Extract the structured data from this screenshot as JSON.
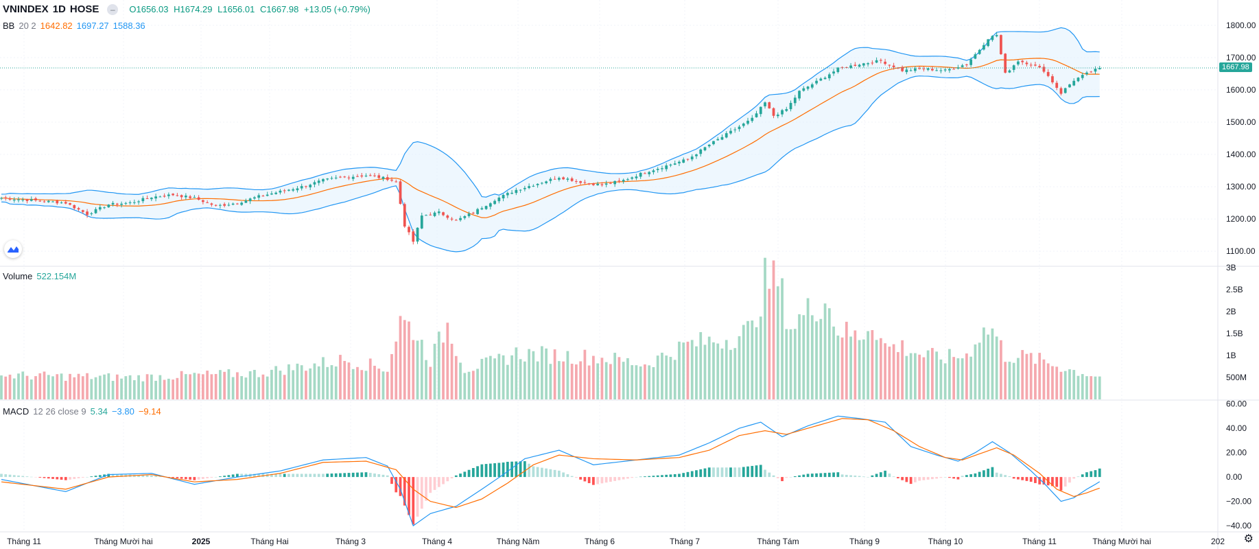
{
  "header": {
    "symbol": "VNINDEX",
    "interval": "1D",
    "exchange": "HOSE",
    "eye_icon": "minus-icon",
    "open": "O1656.03",
    "high": "H1674.29",
    "low": "L1656.01",
    "close": "C1667.98",
    "change": "+13.05 (+0.79%)"
  },
  "bb_legend": {
    "name": "BB",
    "params": "20 2",
    "basis": "1642.82",
    "upper": "1697.27",
    "lower": "1588.36"
  },
  "volume_legend": {
    "name": "Volume",
    "value": "522.154M"
  },
  "macd_legend": {
    "name": "MACD",
    "params": "12 26 close 9",
    "hist": "5.34",
    "macd": "−3.80",
    "signal": "−9.14"
  },
  "last_price_tag": "1667.98",
  "colors": {
    "up": "#26a69a",
    "down": "#ef5350",
    "bb_line": "#2196f3",
    "basis": "#ff6d00",
    "bb_fill": "#e3f2fd"
  },
  "chart_data": [
    {
      "type": "candlestick",
      "title": "VNINDEX 1D HOSE",
      "y_ticks": [
        "1100.00",
        "1200.00",
        "1300.00",
        "1400.00",
        "1500.00",
        "1600.00",
        "1700.00",
        "1800.00"
      ],
      "ylim": [
        1060,
        1840
      ],
      "x_ticks": [
        "Tháng 11",
        "Tháng Mười hai",
        "2025",
        "Tháng Hai",
        "Tháng 3",
        "Tháng 4",
        "Tháng Năm",
        "Tháng 6",
        "Tháng 7",
        "Tháng Tám",
        "Tháng 9",
        "Tháng 10",
        "Tháng 11",
        "Tháng Mười hai",
        "202"
      ],
      "x_tick_bold": "2025",
      "close_anchors": [
        [
          0,
          1265
        ],
        [
          10,
          1255
        ],
        [
          15,
          1250
        ],
        [
          20,
          1215
        ],
        [
          25,
          1245
        ],
        [
          30,
          1250
        ],
        [
          35,
          1268
        ],
        [
          40,
          1275
        ],
        [
          45,
          1265
        ],
        [
          50,
          1240
        ],
        [
          55,
          1250
        ],
        [
          60,
          1270
        ],
        [
          65,
          1285
        ],
        [
          70,
          1300
        ],
        [
          75,
          1320
        ],
        [
          80,
          1330
        ],
        [
          85,
          1335
        ],
        [
          90,
          1325
        ],
        [
          92,
          1315
        ],
        [
          94,
          1180
        ],
        [
          96,
          1130
        ],
        [
          98,
          1210
        ],
        [
          102,
          1220
        ],
        [
          106,
          1195
        ],
        [
          110,
          1220
        ],
        [
          115,
          1260
        ],
        [
          120,
          1290
        ],
        [
          125,
          1310
        ],
        [
          130,
          1330
        ],
        [
          135,
          1315
        ],
        [
          140,
          1305
        ],
        [
          145,
          1320
        ],
        [
          150,
          1345
        ],
        [
          155,
          1365
        ],
        [
          160,
          1385
        ],
        [
          165,
          1430
        ],
        [
          170,
          1470
        ],
        [
          175,
          1510
        ],
        [
          178,
          1560
        ],
        [
          180,
          1520
        ],
        [
          183,
          1540
        ],
        [
          186,
          1595
        ],
        [
          190,
          1625
        ],
        [
          195,
          1665
        ],
        [
          200,
          1680
        ],
        [
          205,
          1690
        ],
        [
          210,
          1660
        ],
        [
          215,
          1665
        ],
        [
          220,
          1660
        ],
        [
          225,
          1680
        ],
        [
          228,
          1725
        ],
        [
          230,
          1760
        ],
        [
          232,
          1770
        ],
        [
          234,
          1650
        ],
        [
          237,
          1690
        ],
        [
          240,
          1680
        ],
        [
          243,
          1660
        ],
        [
          247,
          1590
        ],
        [
          250,
          1630
        ],
        [
          253,
          1650
        ],
        [
          256,
          1668
        ]
      ],
      "bb": {
        "period": 20,
        "mult": 2
      },
      "last_close": 1667.98
    },
    {
      "type": "bar",
      "title": "Volume",
      "y_ticks": [
        "500M",
        "1B",
        "1.5B",
        "2B",
        "2.5B",
        "3B"
      ],
      "ylim": [
        0,
        3000
      ],
      "unit": "M",
      "volume_anchors": [
        [
          0,
          550
        ],
        [
          30,
          500
        ],
        [
          60,
          600
        ],
        [
          80,
          900
        ],
        [
          90,
          700
        ],
        [
          93,
          1800
        ],
        [
          96,
          1600
        ],
        [
          100,
          900
        ],
        [
          104,
          1700
        ],
        [
          108,
          700
        ],
        [
          115,
          850
        ],
        [
          120,
          1050
        ],
        [
          130,
          1000
        ],
        [
          140,
          950
        ],
        [
          150,
          800
        ],
        [
          160,
          1250
        ],
        [
          170,
          1400
        ],
        [
          175,
          1600
        ],
        [
          178,
          2700
        ],
        [
          181,
          2700
        ],
        [
          184,
          1650
        ],
        [
          188,
          2000
        ],
        [
          192,
          2300
        ],
        [
          195,
          1600
        ],
        [
          200,
          1400
        ],
        [
          203,
          1800
        ],
        [
          206,
          1200
        ],
        [
          210,
          1200
        ],
        [
          215,
          1000
        ],
        [
          220,
          950
        ],
        [
          225,
          1000
        ],
        [
          228,
          1500
        ],
        [
          231,
          1600
        ],
        [
          234,
          1000
        ],
        [
          240,
          950
        ],
        [
          245,
          800
        ],
        [
          250,
          650
        ],
        [
          256,
          522
        ]
      ],
      "last_value": 522.154
    },
    {
      "type": "line",
      "title": "MACD",
      "y_ticks": [
        "60.00",
        "40.00",
        "20.00",
        "0.00",
        "−20.00",
        "−40.00"
      ],
      "ylim": [
        -45,
        62
      ],
      "series": [
        {
          "name": "MACD",
          "values_anchor": [
            [
              0,
              -2
            ],
            [
              15,
              -12
            ],
            [
              25,
              2
            ],
            [
              35,
              3
            ],
            [
              45,
              -6
            ],
            [
              55,
              0
            ],
            [
              65,
              5
            ],
            [
              75,
              14
            ],
            [
              85,
              16
            ],
            [
              90,
              9
            ],
            [
              93,
              -10
            ],
            [
              96,
              -40
            ],
            [
              100,
              -30
            ],
            [
              106,
              -24
            ],
            [
              112,
              -10
            ],
            [
              117,
              2
            ],
            [
              122,
              15
            ],
            [
              130,
              22
            ],
            [
              138,
              10
            ],
            [
              148,
              14
            ],
            [
              158,
              18
            ],
            [
              165,
              28
            ],
            [
              172,
              40
            ],
            [
              177,
              45
            ],
            [
              182,
              33
            ],
            [
              188,
              42
            ],
            [
              195,
              50
            ],
            [
              200,
              48
            ],
            [
              206,
              45
            ],
            [
              212,
              25
            ],
            [
              218,
              18
            ],
            [
              223,
              13
            ],
            [
              227,
              20
            ],
            [
              231,
              29
            ],
            [
              235,
              20
            ],
            [
              240,
              5
            ],
            [
              243,
              -5
            ],
            [
              247,
              -20
            ],
            [
              250,
              -17
            ],
            [
              253,
              -10
            ],
            [
              256,
              -4
            ]
          ]
        },
        {
          "name": "Signal",
          "values_anchor": [
            [
              0,
              -4
            ],
            [
              15,
              -10
            ],
            [
              25,
              0
            ],
            [
              35,
              2
            ],
            [
              45,
              -4
            ],
            [
              55,
              -2
            ],
            [
              65,
              3
            ],
            [
              75,
              12
            ],
            [
              85,
              13
            ],
            [
              92,
              6
            ],
            [
              96,
              -10
            ],
            [
              100,
              -20
            ],
            [
              106,
              -25
            ],
            [
              112,
              -18
            ],
            [
              118,
              -5
            ],
            [
              124,
              10
            ],
            [
              130,
              18
            ],
            [
              138,
              15
            ],
            [
              148,
              14
            ],
            [
              158,
              16
            ],
            [
              165,
              22
            ],
            [
              172,
              34
            ],
            [
              178,
              38
            ],
            [
              183,
              35
            ],
            [
              190,
              42
            ],
            [
              196,
              48
            ],
            [
              202,
              47
            ],
            [
              208,
              38
            ],
            [
              214,
              25
            ],
            [
              220,
              16
            ],
            [
              224,
              14
            ],
            [
              228,
              19
            ],
            [
              232,
              24
            ],
            [
              236,
              18
            ],
            [
              242,
              3
            ],
            [
              246,
              -10
            ],
            [
              250,
              -16
            ],
            [
              253,
              -13
            ],
            [
              256,
              -9
            ]
          ]
        }
      ],
      "hist_last": 5.34,
      "macd_last": -3.8,
      "signal_last": -9.14
    }
  ]
}
